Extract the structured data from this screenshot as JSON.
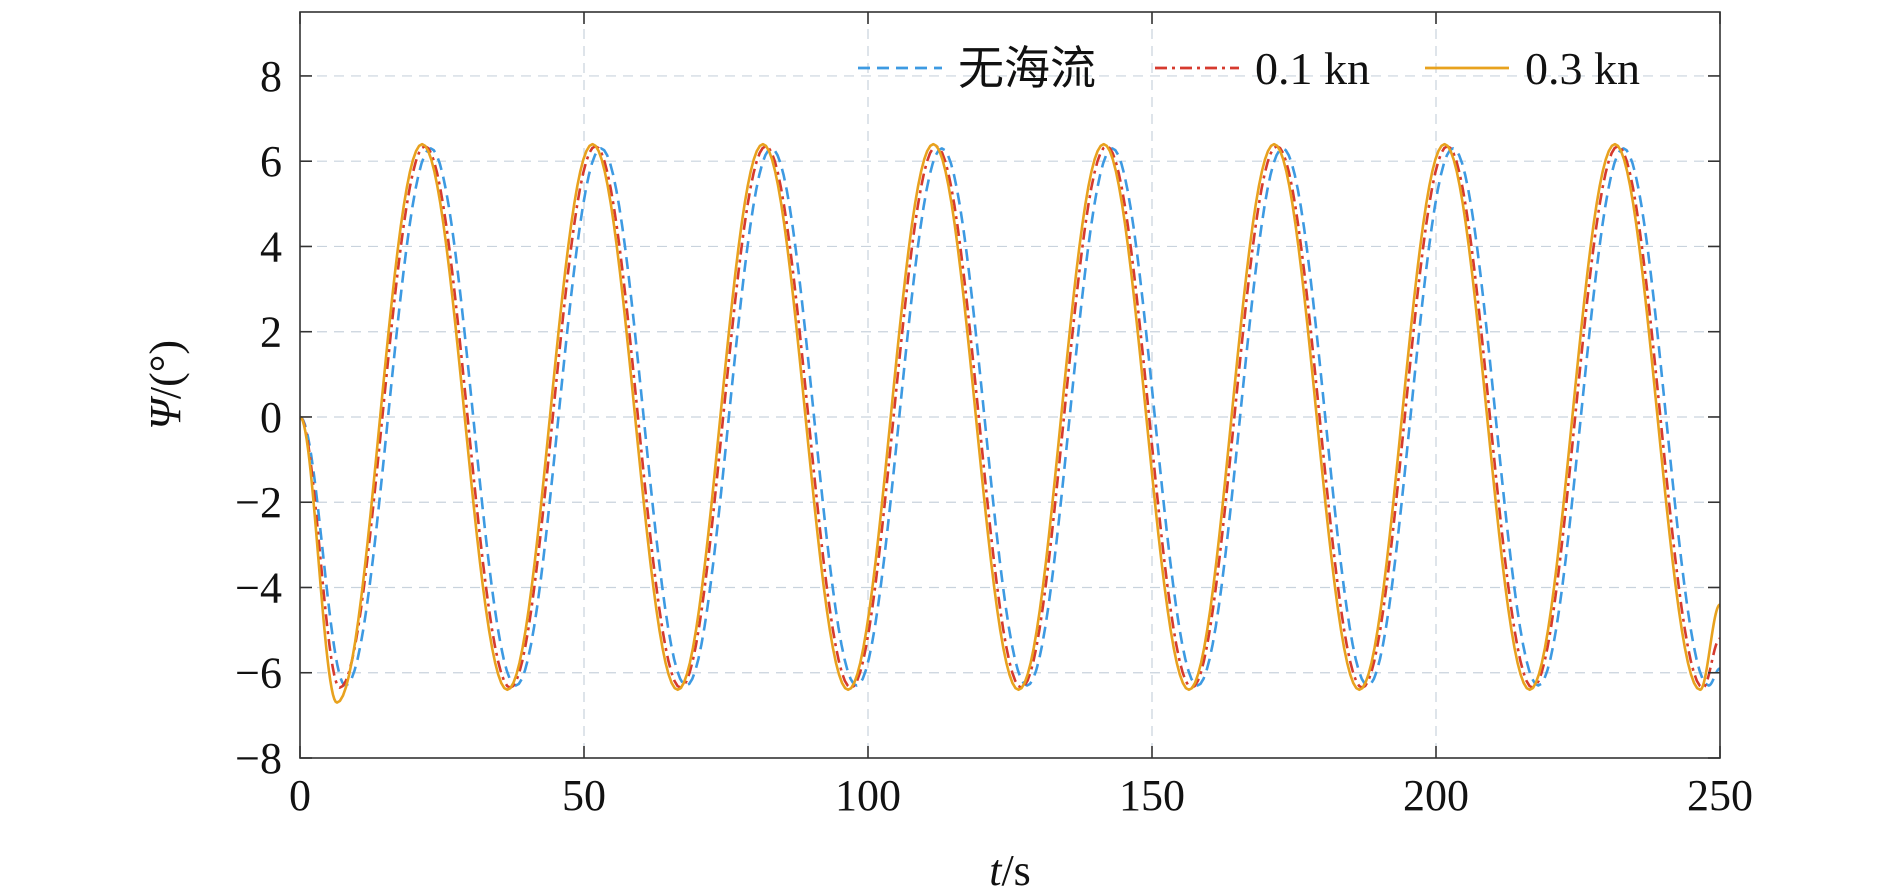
{
  "chart_data": {
    "type": "line",
    "title": "",
    "xlabel_italic": "t",
    "xlabel_unit": "/s",
    "ylabel_italic": "Ψ",
    "ylabel_unit": "/(°)",
    "xlim": [
      0,
      250
    ],
    "ylim": [
      -8,
      9.5
    ],
    "xticks": [
      0,
      50,
      100,
      150,
      200,
      250
    ],
    "yticks": [
      -8,
      -6,
      -4,
      -2,
      0,
      2,
      4,
      6,
      8
    ],
    "ytick_labels": [
      "−8",
      "−6",
      "−4",
      "−2",
      "0",
      "2",
      "4",
      "6",
      "8"
    ],
    "grid": true,
    "legend_position": "top-right",
    "period_s": 30,
    "series": [
      {
        "name": "无海流",
        "color": "#3d9ae2",
        "style": "dashed",
        "amplitude": 6.3,
        "peak_times": [
          23,
          53,
          83,
          113,
          143,
          173,
          203,
          233
        ],
        "trough_times": [
          8,
          38,
          68,
          98,
          128,
          158,
          188,
          218,
          248
        ],
        "start_value": 0,
        "end_value": -5.9
      },
      {
        "name": "0.1 kn",
        "color": "#d63a2e",
        "style": "dashdot",
        "amplitude": 6.35,
        "peak_times": [
          22,
          52,
          82,
          112,
          142,
          172,
          202,
          232
        ],
        "trough_times": [
          7,
          37,
          67,
          97,
          127,
          157,
          187,
          217,
          247
        ],
        "start_value": 0,
        "end_value": -5.2
      },
      {
        "name": "0.3 kn",
        "color": "#e8a21e",
        "style": "solid",
        "amplitude": 6.4,
        "peak_times": [
          21.5,
          51.5,
          81.5,
          111.5,
          141.5,
          171.5,
          201.5,
          231.5
        ],
        "trough_times": [
          6.5,
          36.5,
          66.5,
          96.5,
          126.5,
          156.5,
          186.5,
          216.5,
          246.5
        ],
        "first_trough_value": -6.7,
        "start_value": 0,
        "end_value": -4.4
      }
    ]
  }
}
